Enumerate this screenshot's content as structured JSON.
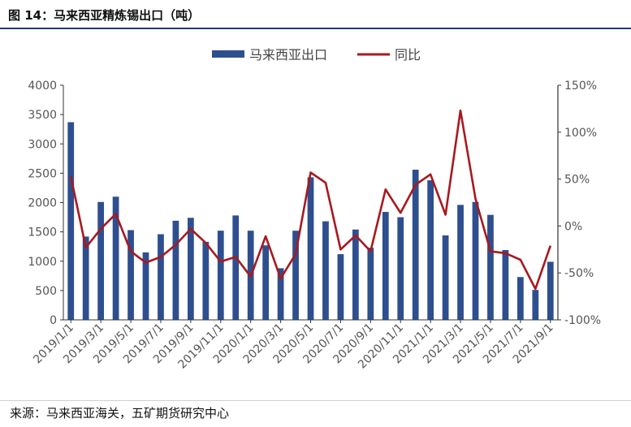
{
  "figure": {
    "title": "图 14：马来西亚精炼锡出口（吨）",
    "source": "来源：马来西亚海关，五矿期货研究中心"
  },
  "chart_data": {
    "type": "bar",
    "title": "",
    "xlabel": "",
    "ylabel": "",
    "legend_position": "top-center",
    "grid": false,
    "categories": [
      "2019/1/1",
      "2019/2/1",
      "2019/3/1",
      "2019/4/1",
      "2019/5/1",
      "2019/6/1",
      "2019/7/1",
      "2019/8/1",
      "2019/9/1",
      "2019/10/1",
      "2019/11/1",
      "2019/12/1",
      "2020/1/1",
      "2020/2/1",
      "2020/3/1",
      "2020/4/1",
      "2020/5/1",
      "2020/6/1",
      "2020/7/1",
      "2020/8/1",
      "2020/9/1",
      "2020/10/1",
      "2020/11/1",
      "2020/12/1",
      "2021/1/1",
      "2021/2/1",
      "2021/3/1",
      "2021/4/1",
      "2021/5/1",
      "2021/6/1",
      "2021/7/1",
      "2021/8/1",
      "2021/9/1"
    ],
    "x_tick_labels": [
      "2019/1/1",
      "2019/3/1",
      "2019/5/1",
      "2019/7/1",
      "2019/9/1",
      "2019/11/1",
      "2020/1/1",
      "2020/3/1",
      "2020/5/1",
      "2020/7/1",
      "2020/9/1",
      "2020/11/1",
      "2021/1/1",
      "2021/3/1",
      "2021/5/1",
      "2021/7/1",
      "2021/9/1"
    ],
    "ylim_left": [
      0,
      4000
    ],
    "yticks_left": [
      "0",
      "500",
      "1000",
      "1500",
      "2000",
      "2500",
      "3000",
      "3500",
      "4000"
    ],
    "ylim_right": [
      -100,
      150
    ],
    "yticks_right": [
      "-100%",
      "-50%",
      "0%",
      "50%",
      "100%",
      "150%"
    ],
    "series": [
      {
        "name": "马来西亚出口",
        "type": "bar",
        "axis": "left",
        "color": "#2e4f8f",
        "values": [
          3370,
          1420,
          2010,
          2100,
          1530,
          1150,
          1460,
          1690,
          1740,
          1330,
          1520,
          1780,
          1520,
          1270,
          880,
          1520,
          2430,
          1680,
          1120,
          1540,
          1230,
          1840,
          1750,
          2560,
          2380,
          1440,
          1960,
          2010,
          1790,
          1190,
          730,
          510,
          990
        ]
      },
      {
        "name": "同比",
        "type": "line",
        "axis": "right",
        "color": "#a8191f",
        "values": [
          53,
          -23,
          -3,
          13,
          -27,
          -39,
          -33,
          -20,
          -3,
          -18,
          -38,
          -33,
          -54,
          -11,
          -56,
          -30,
          57,
          46,
          -25,
          -10,
          -27,
          39,
          14,
          44,
          55,
          12,
          123,
          29,
          -27,
          -29,
          -36,
          -67,
          -21
        ]
      }
    ]
  }
}
